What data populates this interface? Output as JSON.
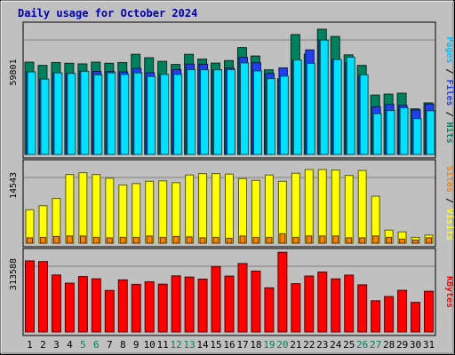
{
  "chart_data": {
    "type": "bar",
    "title": "Daily usage for October 2024",
    "days": [
      "1",
      "2",
      "3",
      "4",
      "5",
      "6",
      "7",
      "8",
      "9",
      "10",
      "11",
      "12",
      "13",
      "14",
      "15",
      "16",
      "17",
      "18",
      "19",
      "20",
      "21",
      "22",
      "23",
      "24",
      "25",
      "26",
      "27",
      "28",
      "29",
      "30",
      "31"
    ],
    "weekend_days": [
      "5",
      "6",
      "12",
      "13",
      "19",
      "20",
      "26",
      "27"
    ],
    "panels": [
      {
        "id": "hits-files-pages",
        "ytick": "59801",
        "ymax": 59801,
        "legend": [
          "Pages",
          "Files",
          "Hits"
        ],
        "series": [
          {
            "name": "Hits",
            "color": "#00805c",
            "values": [
              48200,
              46500,
              48000,
              47600,
              47300,
              48200,
              47600,
              48000,
              52300,
              50500,
              48600,
              47000,
              52300,
              49800,
              47700,
              49000,
              55800,
              51400,
              44200,
              39500,
              62600,
              52400,
              65400,
              61600,
              52000,
              46500,
              31000,
              31500,
              32000,
              23800,
              26900
            ]
          },
          {
            "name": "Files",
            "color": "#2040f0",
            "values": [
              43100,
              39300,
              42600,
              42300,
              43400,
              43300,
              43300,
              43100,
              44900,
              42700,
              41800,
              44300,
              47200,
              47100,
              44200,
              45100,
              50700,
              47900,
              42300,
              45200,
              49300,
              54600,
              59700,
              49600,
              47800,
              41300,
              24900,
              26100,
              25600,
              23200,
              26300
            ]
          },
          {
            "name": "Pages",
            "color": "#00e0ff",
            "values": [
              43100,
              39300,
              42600,
              42300,
              43400,
              41600,
              42600,
              41800,
              42600,
              40700,
              41800,
              41800,
              44300,
              44200,
              44200,
              44300,
              47800,
              43600,
              39600,
              40900,
              49300,
              47600,
              59700,
              49600,
              50800,
              41600,
              21300,
              22900,
              24400,
              18700,
              22800
            ]
          }
        ]
      },
      {
        "id": "visits-sites",
        "ytick": "14543",
        "ymax": 14543,
        "legend": [
          "Sites",
          "Visits"
        ],
        "series": [
          {
            "name": "Visits",
            "color": "#ffff00",
            "values": [
              7400,
              8300,
              9900,
              15200,
              15600,
              15200,
              14400,
              12900,
              13200,
              13700,
              13800,
              13400,
              15100,
              15400,
              15400,
              15300,
              14300,
              13900,
              15100,
              13700,
              15500,
              16300,
              16300,
              16200,
              15000,
              16100,
              10400,
              2900,
              2500,
              1300,
              1800
            ]
          },
          {
            "name": "Sites",
            "color": "#ff8000",
            "values": [
              1200,
              1300,
              1500,
              1600,
              1600,
              1300,
              1200,
              1300,
              1300,
              1600,
              1300,
              1500,
              1400,
              1200,
              1300,
              1100,
              1600,
              1300,
              1300,
              2100,
              1300,
              1600,
              1600,
              1600,
              1200,
              1200,
              1600,
              1300,
              900,
              700,
              1200
            ]
          }
        ]
      },
      {
        "id": "kbytes",
        "ytick": "313588",
        "ymax": 313588,
        "legend": [
          "KBytes"
        ],
        "series": [
          {
            "name": "KBytes",
            "color": "#ff0000",
            "values": [
              339200,
              335900,
              271900,
              232800,
              264500,
              253800,
              198200,
              248600,
              227200,
              239600,
              228000,
              267700,
              262000,
              252200,
              312300,
              266700,
              326700,
              290500,
              210600,
              380500,
              230500,
              266800,
              286000,
              253300,
              271200,
              225000,
              149000,
              169000,
              198800,
              141200,
              194400
            ]
          }
        ]
      }
    ]
  }
}
